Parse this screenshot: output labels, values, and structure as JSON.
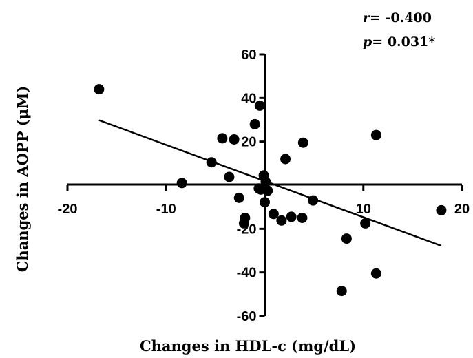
{
  "chart_data": {
    "type": "scatter",
    "title": "",
    "xlabel": "Changes in HDL-c (mg/dL)",
    "ylabel": "Changes in AOPP (μM)",
    "xlim": [
      -20,
      20
    ],
    "ylim": [
      -60,
      60
    ],
    "xticks": [
      "-20",
      "-10",
      "10",
      "20"
    ],
    "yticks": [
      "60",
      "40",
      "20",
      "-20",
      "-40",
      "-60"
    ],
    "grid": false,
    "points": [
      {
        "x": -16.8,
        "y": 44
      },
      {
        "x": -8.4,
        "y": 1
      },
      {
        "x": -5.4,
        "y": 10.5
      },
      {
        "x": -4.3,
        "y": 21.5
      },
      {
        "x": -3.6,
        "y": 3.8
      },
      {
        "x": -3.1,
        "y": 21
      },
      {
        "x": -2.6,
        "y": -5.8
      },
      {
        "x": -1.0,
        "y": 28
      },
      {
        "x": -0.5,
        "y": 36.5
      },
      {
        "x": -0.1,
        "y": 4.5
      },
      {
        "x": -0.6,
        "y": -1.5
      },
      {
        "x": 0.1,
        "y": 1.5
      },
      {
        "x": 0.3,
        "y": -2.5
      },
      {
        "x": -0.4,
        "y": -2
      },
      {
        "x": 0.0,
        "y": -7.8
      },
      {
        "x": -2.0,
        "y": -15
      },
      {
        "x": -2.1,
        "y": -17.5
      },
      {
        "x": 0.9,
        "y": -13.2
      },
      {
        "x": 1.7,
        "y": -16.2
      },
      {
        "x": 2.1,
        "y": 12
      },
      {
        "x": 2.7,
        "y": -14.5
      },
      {
        "x": 3.8,
        "y": -15
      },
      {
        "x": 3.9,
        "y": 19.5
      },
      {
        "x": 4.9,
        "y": -7
      },
      {
        "x": 8.3,
        "y": -24.5
      },
      {
        "x": 7.8,
        "y": -48.5
      },
      {
        "x": 10.2,
        "y": -17.5
      },
      {
        "x": 11.3,
        "y": 23
      },
      {
        "x": 11.3,
        "y": -40.5
      },
      {
        "x": 17.9,
        "y": -11.5
      }
    ],
    "regression_line": {
      "x": [
        -16.8,
        17.9
      ],
      "y": [
        29.8,
        -27.8
      ]
    },
    "annotations": [
      {
        "symbol": "r",
        "value": "= -0.400"
      },
      {
        "symbol": "p",
        "value": "= 0.031*"
      }
    ]
  }
}
